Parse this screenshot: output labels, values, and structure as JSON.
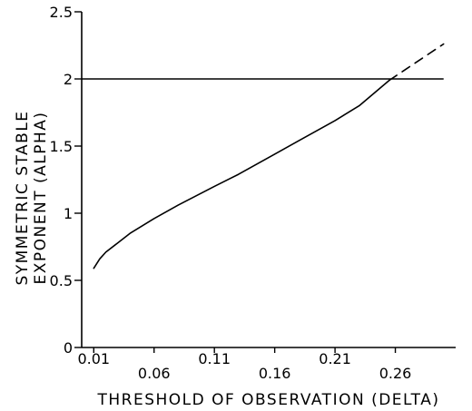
{
  "chart_data": {
    "type": "line",
    "xlabel": "THRESHOLD OF OBSERVATION (DELTA)",
    "ylabel_lines": [
      "SYMMETRIC STABLE",
      "EXPONENT (ALPHA)"
    ],
    "xlim": [
      0.0,
      0.31
    ],
    "ylim": [
      0,
      2.5
    ],
    "x_ticks_upper": [
      "0.01",
      "0.11",
      "0.21"
    ],
    "x_ticks_lower": [
      "0.06",
      "0.16",
      "0.26"
    ],
    "y_ticks": [
      "0",
      "0.5",
      "1",
      "1.5",
      "2",
      "2.5"
    ],
    "y_tick_values": [
      0,
      0.5,
      1,
      1.5,
      2,
      2.5
    ],
    "series": [
      {
        "style": "solid",
        "x": [
          0.01,
          0.015,
          0.02,
          0.03,
          0.04,
          0.06,
          0.08,
          0.11,
          0.13,
          0.16,
          0.18,
          0.21,
          0.23,
          0.255
        ],
        "y": [
          0.59,
          0.66,
          0.71,
          0.78,
          0.85,
          0.96,
          1.06,
          1.2,
          1.29,
          1.44,
          1.54,
          1.69,
          1.8,
          1.99
        ]
      },
      {
        "style": "dashed",
        "x": [
          0.255,
          0.27,
          0.285,
          0.3
        ],
        "y": [
          1.99,
          2.08,
          2.17,
          2.26
        ]
      }
    ],
    "reference_lines": [
      {
        "y": 2,
        "x_from": 0.0,
        "x_to": 0.3
      }
    ],
    "grid": false,
    "legend": "none"
  }
}
